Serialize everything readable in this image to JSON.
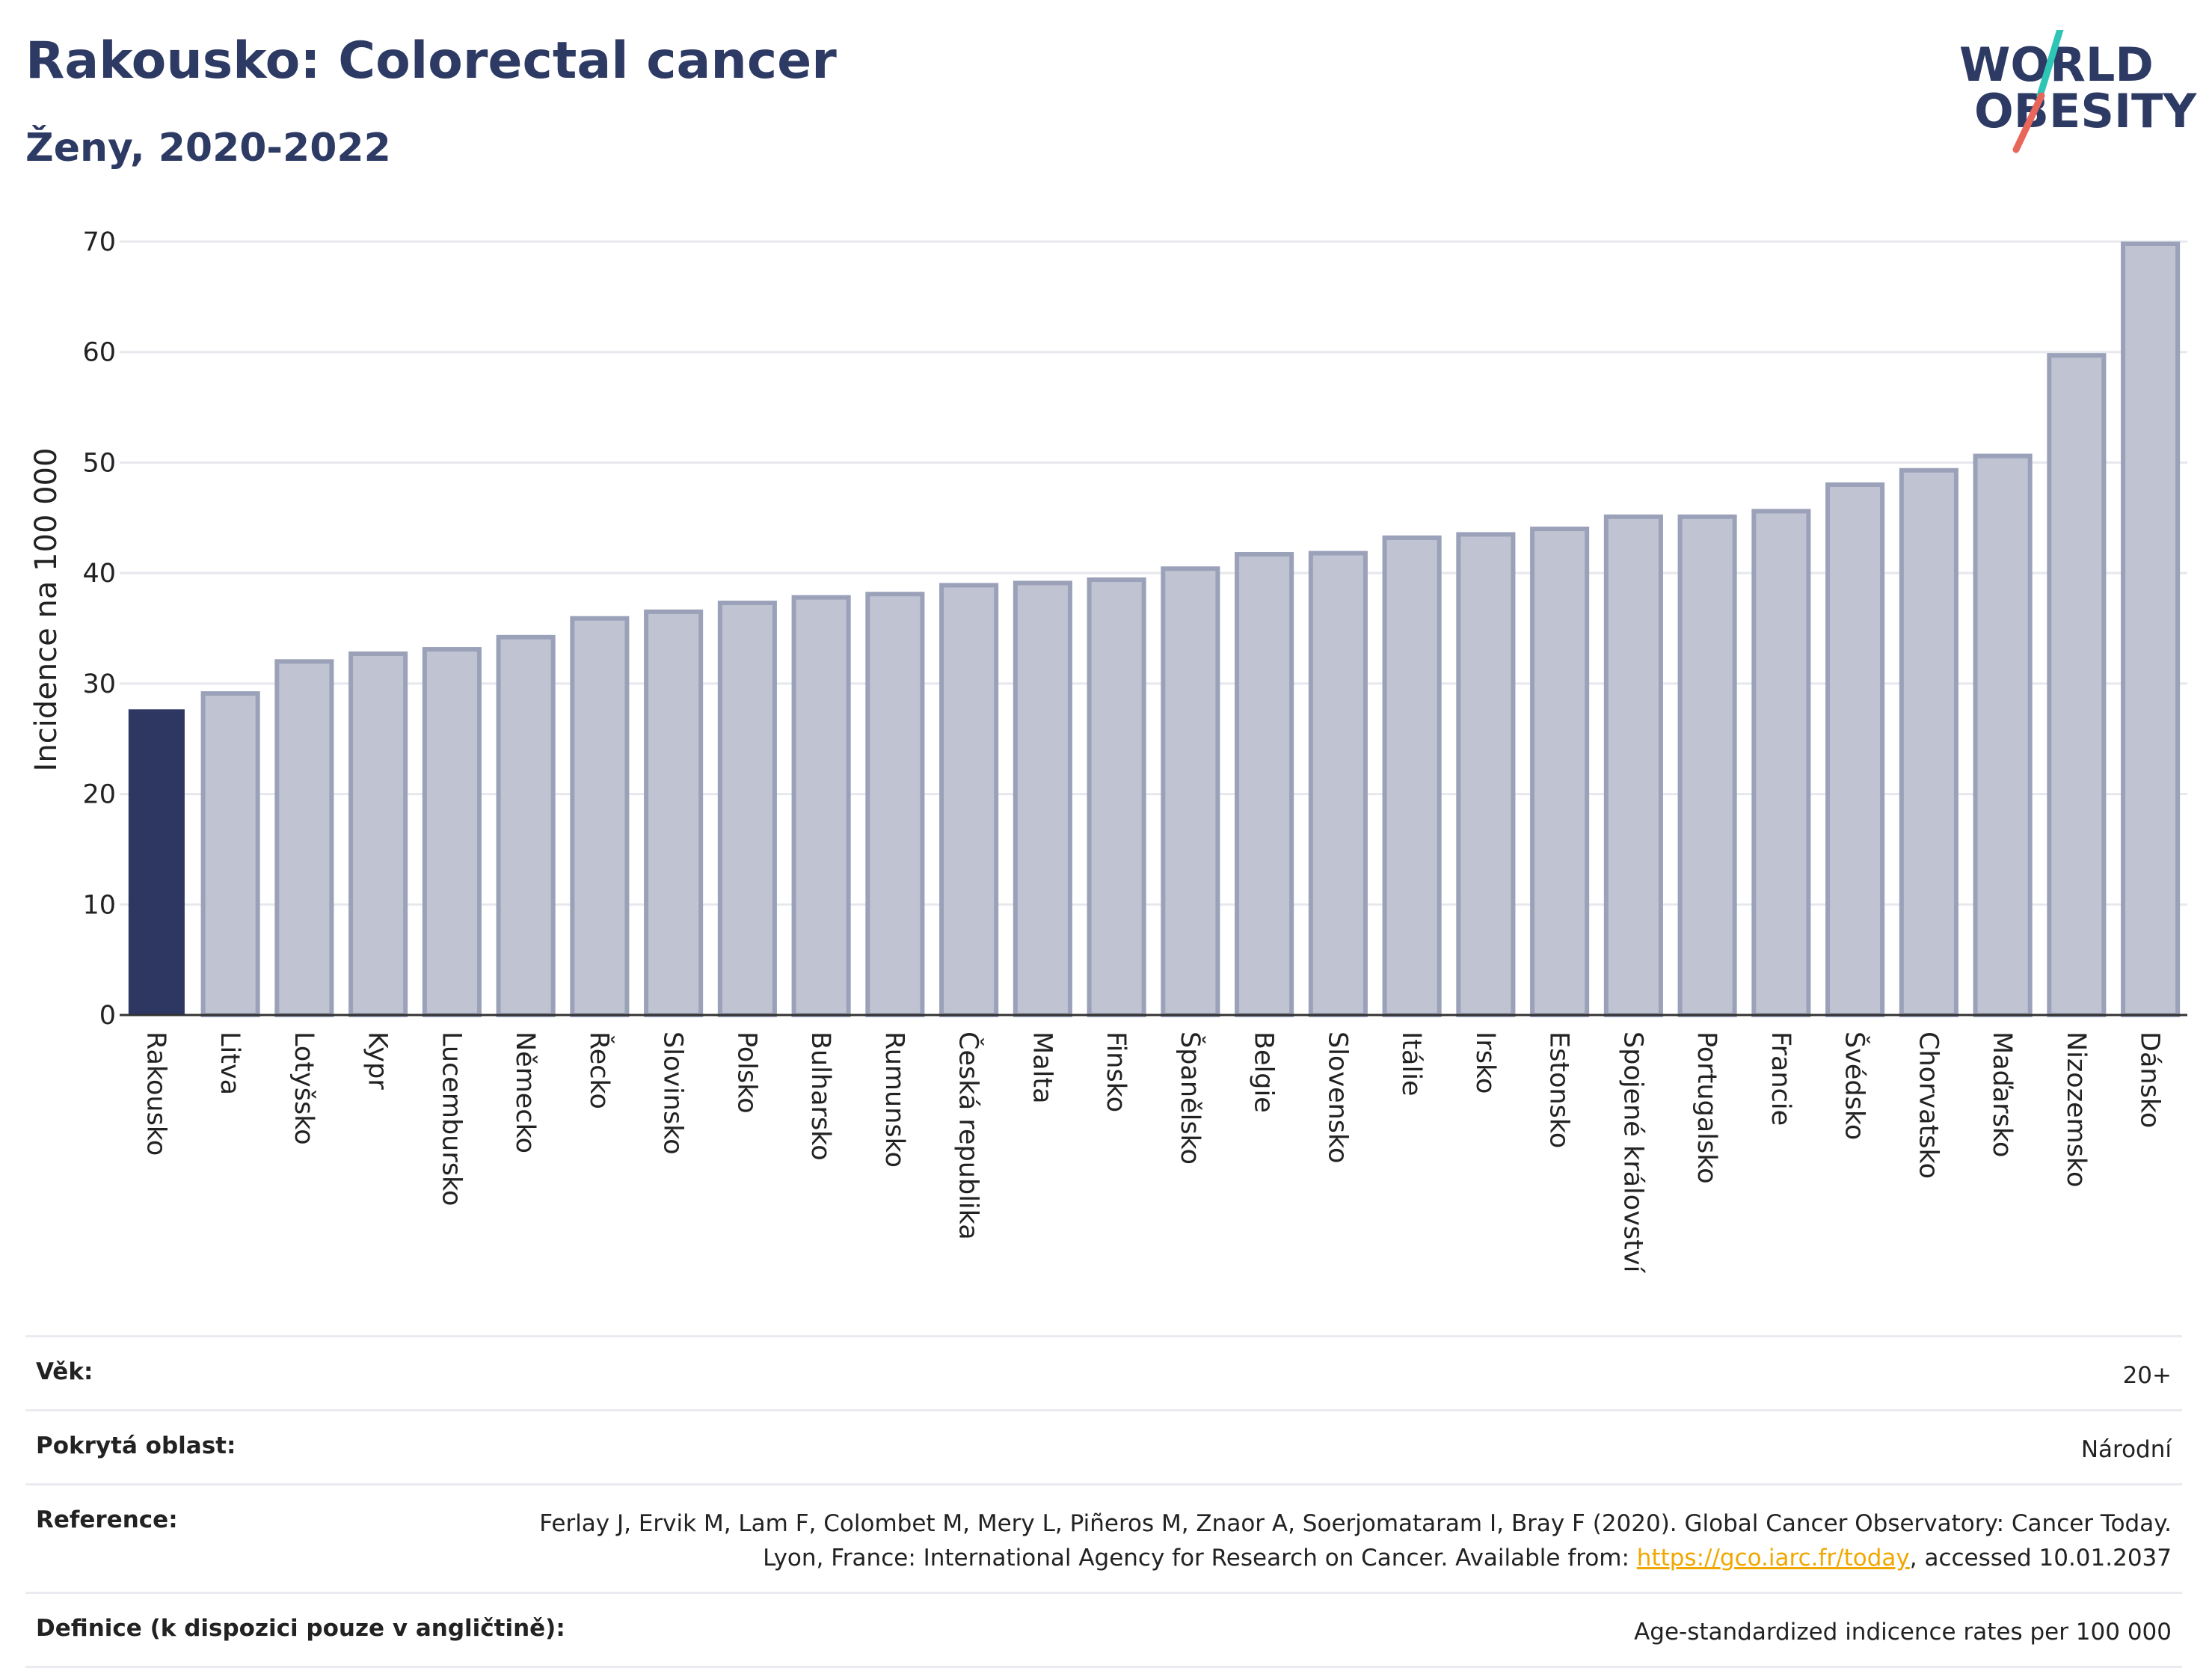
{
  "header": {
    "title": "Rakousko: Colorectal cancer",
    "subtitle": "Ženy, 2020-2022"
  },
  "logo": {
    "line1": "WORLD",
    "line2": "OBESITY",
    "accent_colors": [
      "#2ec4b6",
      "#e8675a"
    ],
    "text_color": "#2d3a63"
  },
  "colors": {
    "highlight_bar": "#2d3762",
    "bar_fill": "#c0c4d2",
    "bar_stroke": "#9aa1b8",
    "grid": "#e6e8ee"
  },
  "chart_data": {
    "type": "bar",
    "ylabel": "Incidence na 100 000",
    "xlabel": "",
    "ylim": [
      0,
      70
    ],
    "yticks": [
      0,
      10,
      20,
      30,
      40,
      50,
      60,
      70
    ],
    "grid": true,
    "highlight": "Rakousko",
    "categories": [
      "Rakousko",
      "Litva",
      "Lotyšsko",
      "Kypr",
      "Lucembursko",
      "Německo",
      "Řecko",
      "Slovinsko",
      "Polsko",
      "Bulharsko",
      "Rumunsko",
      "Česká republika",
      "Malta",
      "Finsko",
      "Španělsko",
      "Belgie",
      "Slovensko",
      "Itálie",
      "Irsko",
      "Estonsko",
      "Spojené království",
      "Portugalsko",
      "Francie",
      "Švédsko",
      "Chorvatsko",
      "Maďarsko",
      "Nizozemsko",
      "Dánsko"
    ],
    "values": [
      27.6,
      29.1,
      32.0,
      32.7,
      33.1,
      34.2,
      35.9,
      36.5,
      37.3,
      37.8,
      38.1,
      38.9,
      39.1,
      39.4,
      40.4,
      41.7,
      41.8,
      43.2,
      43.5,
      44.0,
      45.1,
      45.1,
      45.6,
      48.0,
      49.3,
      50.6,
      59.7,
      69.8
    ]
  },
  "info": {
    "rows": [
      {
        "label": "Věk:",
        "value": "20+"
      },
      {
        "label": "Pokrytá oblast:",
        "value": "Národní"
      },
      {
        "label": "Reference:",
        "value_pre": "Ferlay J, Ervik M, Lam F, Colombet M, Mery L, Piñeros M, Znaor A, Soerjomataram I, Bray F (2020). Global Cancer Observatory: Cancer Today. Lyon, France: International Agency for Research on Cancer. Available from: ",
        "link": "https://gco.iarc.fr/today",
        "value_post": ", accessed 10.01.2037"
      },
      {
        "label": "Definice (k dispozici pouze v angličtině):",
        "value": "Age-standardized indicence rates per 100 000"
      }
    ]
  }
}
